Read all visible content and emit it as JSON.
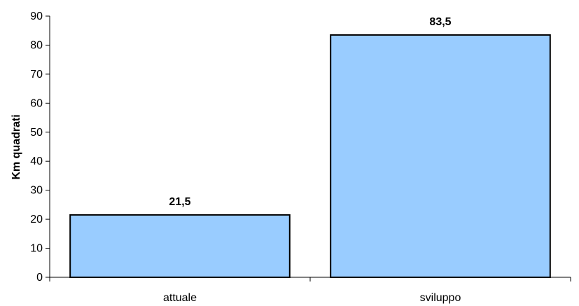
{
  "chart_data": {
    "type": "bar",
    "categories": [
      "attuale",
      "sviluppo"
    ],
    "values": [
      21.5,
      83.5
    ],
    "data_labels": [
      "21,5",
      "83,5"
    ],
    "ylabel": "Km quadrati",
    "xlabel": "",
    "ylim": [
      0,
      90
    ],
    "yticks": [
      0,
      10,
      20,
      30,
      40,
      50,
      60,
      70,
      80,
      90
    ],
    "grid": false,
    "legend": "none",
    "bar_color": "#99ccff",
    "bar_edge_color": "#000000"
  }
}
